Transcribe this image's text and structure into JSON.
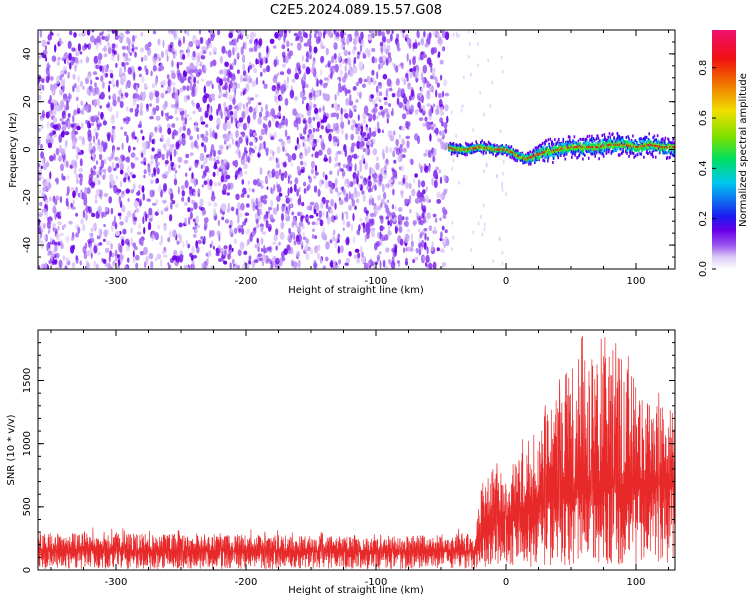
{
  "page_title": "C2E5.2024.089.15.57.G08",
  "colors": {
    "snr_line": "#e8292a",
    "frame": "#000000",
    "colormap": [
      "#ffffff",
      "#dcc8f8",
      "#9a55ee",
      "#6a00e8",
      "#1a1af0",
      "#00c8f0",
      "#00e060",
      "#7ae000",
      "#f0e000",
      "#f07000",
      "#f01010",
      "#f01070"
    ]
  },
  "chart_data": [
    {
      "type": "heatmap",
      "title": "C2E5.2024.089.15.57.G08",
      "xlabel": "Height of straight line (km)",
      "ylabel": "Frequency (Hz)",
      "xlim": [
        -360,
        130
      ],
      "ylim": [
        -50,
        50
      ],
      "x_ticks": [
        -300,
        -200,
        -100,
        0,
        100
      ],
      "y_ticks": [
        -40,
        -20,
        0,
        20,
        40
      ],
      "noise_region": {
        "x": [
          -360,
          -45
        ],
        "y": [
          -50,
          50
        ]
      },
      "signal_trace": {
        "x": [
          -45,
          -40,
          -30,
          -20,
          -10,
          0,
          10,
          15,
          20,
          30,
          40,
          50,
          60,
          70,
          80,
          90,
          100,
          110,
          120,
          130
        ],
        "frequency": [
          1,
          0,
          0,
          1,
          0,
          0,
          -3,
          -4,
          -3,
          -1,
          0,
          1,
          1,
          1,
          2,
          2,
          1,
          2,
          1,
          1
        ]
      },
      "colorbar": {
        "label": "Normalized spectral amplitude",
        "range": [
          0.0,
          0.95
        ],
        "ticks": [
          0.0,
          0.2,
          0.4,
          0.6,
          0.8
        ]
      }
    },
    {
      "type": "line",
      "xlabel": "Height of straight line (km)",
      "ylabel": "SNR (10 * v/v)",
      "xlim": [
        -360,
        130
      ],
      "ylim": [
        0,
        1900
      ],
      "x_ticks": [
        -300,
        -200,
        -100,
        0,
        100
      ],
      "y_ticks": [
        0,
        500,
        1000,
        1500
      ],
      "envelope": {
        "x": [
          -360,
          -300,
          -200,
          -100,
          -25,
          -15,
          0,
          20,
          40,
          60,
          75,
          90,
          110,
          130
        ],
        "mean": [
          160,
          150,
          150,
          145,
          150,
          320,
          420,
          520,
          580,
          650,
          700,
          650,
          660,
          680
        ],
        "peak": [
          300,
          290,
          280,
          260,
          300,
          860,
          750,
          1080,
          1400,
          1900,
          1900,
          1650,
          1400,
          1250
        ]
      }
    }
  ]
}
